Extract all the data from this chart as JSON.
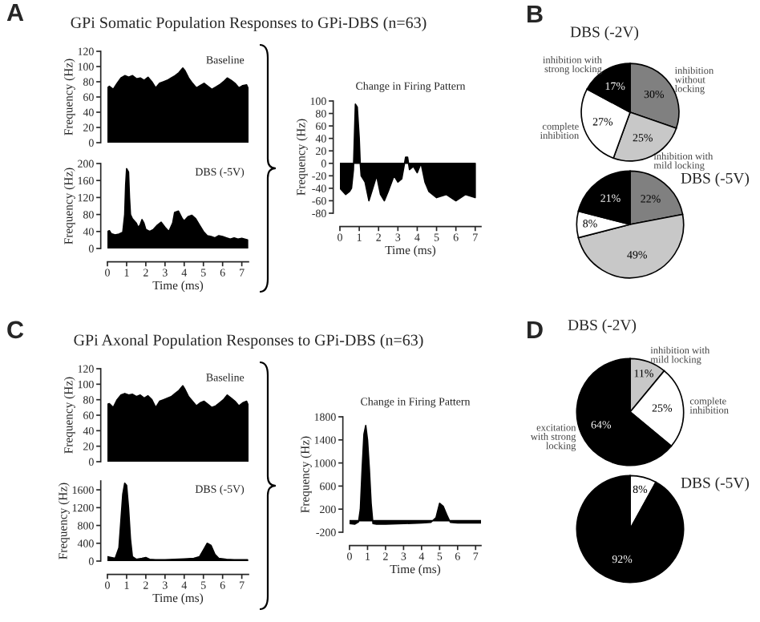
{
  "chart_data": [
    {
      "type": "area",
      "title": "Baseline",
      "ylabel": "Frequency (Hz)",
      "annotations": [
        "A",
        "GPi Somatic Population Responses to GPi-DBS (n=63)"
      ],
      "ylim": [
        0,
        120
      ],
      "yticks": [
        0,
        20,
        40,
        60,
        80,
        100,
        120
      ],
      "tick_labels": "y",
      "x": [
        0,
        0.1,
        0.3,
        0.5,
        0.7,
        0.9,
        1.1,
        1.3,
        1.5,
        1.7,
        1.9,
        2.1,
        2.3,
        2.5,
        2.7,
        2.9,
        3.1,
        3.3,
        3.5,
        3.7,
        3.9,
        4.0,
        4.2,
        4.4,
        4.6,
        4.8,
        5.0,
        5.2,
        5.4,
        5.6,
        5.8,
        6.0,
        6.2,
        6.4,
        6.6,
        6.8,
        7.0,
        7.2,
        7.3
      ],
      "series": [
        {
          "color": "#000000",
          "values": [
            72,
            74,
            70,
            78,
            85,
            88,
            86,
            88,
            84,
            85,
            82,
            86,
            80,
            72,
            78,
            80,
            82,
            85,
            88,
            92,
            98,
            95,
            85,
            78,
            72,
            75,
            78,
            74,
            70,
            73,
            76,
            80,
            85,
            82,
            78,
            72,
            75,
            76,
            70
          ]
        }
      ]
    },
    {
      "type": "area",
      "title": "DBS (-5V)",
      "ylabel": "Frequency (Hz)",
      "xlabel": "Time (ms)",
      "xlim": [
        0,
        7.35
      ],
      "xticks": [
        0,
        1,
        2,
        3,
        4,
        5,
        6,
        7
      ],
      "ylim": [
        0,
        200
      ],
      "yticks": [
        0,
        40,
        80,
        120,
        160,
        200
      ],
      "x": [
        0,
        0.1,
        0.2,
        0.4,
        0.6,
        0.8,
        0.9,
        0.95,
        1.0,
        1.1,
        1.15,
        1.2,
        1.3,
        1.5,
        1.6,
        1.7,
        1.8,
        1.9,
        2.0,
        2.2,
        2.4,
        2.6,
        2.8,
        3.0,
        3.2,
        3.4,
        3.5,
        3.7,
        3.9,
        4.0,
        4.2,
        4.4,
        4.6,
        4.8,
        5.0,
        5.2,
        5.4,
        5.6,
        5.8,
        6.0,
        6.2,
        6.4,
        6.6,
        6.8,
        7.0,
        7.3
      ],
      "series": [
        {
          "color": "#000000",
          "values": [
            40,
            42,
            35,
            32,
            34,
            38,
            80,
            150,
            188,
            180,
            120,
            80,
            70,
            60,
            50,
            55,
            68,
            60,
            45,
            40,
            45,
            55,
            62,
            50,
            40,
            60,
            85,
            88,
            70,
            65,
            75,
            78,
            70,
            55,
            40,
            30,
            28,
            25,
            30,
            28,
            25,
            22,
            25,
            22,
            24,
            20
          ]
        }
      ]
    },
    {
      "type": "area",
      "title": "Change in Firing Pattern",
      "ylabel": "Frequency (Hz)",
      "xlabel": "Time (ms)",
      "xlim": [
        0,
        7.3
      ],
      "xticks": [
        0,
        1,
        2,
        3,
        4,
        5,
        6,
        7
      ],
      "ylim": [
        -80,
        100
      ],
      "yticks": [
        -80,
        -60,
        -40,
        -20,
        0,
        20,
        40,
        60,
        80,
        100
      ],
      "x": [
        0,
        0.3,
        0.5,
        0.6,
        0.7,
        0.8,
        0.9,
        1.0,
        1.05,
        1.1,
        1.3,
        1.5,
        1.7,
        1.9,
        2.1,
        2.3,
        2.5,
        2.8,
        3.0,
        3.2,
        3.4,
        3.5,
        3.6,
        3.8,
        4.0,
        4.2,
        4.4,
        4.6,
        5.0,
        5.5,
        6.0,
        6.5,
        7.0
      ],
      "series": [
        {
          "color": "#000000",
          "values": [
            -40,
            -50,
            -45,
            -40,
            -10,
            95,
            90,
            40,
            0,
            -20,
            -30,
            -60,
            -40,
            -20,
            -50,
            -60,
            -45,
            -20,
            -30,
            -25,
            10,
            10,
            -10,
            -5,
            -15,
            0,
            -30,
            -45,
            -55,
            -50,
            -60,
            -50,
            -55
          ]
        }
      ]
    },
    {
      "type": "pie",
      "title": "DBS (-2V)",
      "annotations": [
        "B"
      ],
      "categories": [
        "inhibition\nwithout\nlocking",
        "inhibition with\nmild locking",
        "complete\ninhibition",
        "inhibition with\nstrong locking"
      ],
      "values": [
        30,
        25,
        27,
        17
      ],
      "colors": [
        "#808080",
        "#c8c8c8",
        "#ffffff",
        "#000000"
      ],
      "value_labels": [
        "30%",
        "25%",
        "27%",
        "17%"
      ]
    },
    {
      "type": "pie",
      "title": "DBS (-5V)",
      "categories": [
        null,
        null,
        null,
        null
      ],
      "values": [
        22,
        49,
        8,
        21
      ],
      "colors": [
        "#808080",
        "#c8c8c8",
        "#ffffff",
        "#000000"
      ],
      "value_labels": [
        "22%",
        "49%",
        "8%",
        "21%"
      ]
    },
    {
      "type": "area",
      "title": "Baseline",
      "ylabel": "Frequency (Hz)",
      "annotations": [
        "C",
        "GPi Axonal Population Responses to GPi-DBS (n=63)"
      ],
      "ylim": [
        0,
        120
      ],
      "yticks": [
        0,
        20,
        40,
        60,
        80,
        100,
        120
      ],
      "tick_labels": "y",
      "x": [
        0,
        0.1,
        0.3,
        0.5,
        0.7,
        0.9,
        1.1,
        1.3,
        1.5,
        1.7,
        1.9,
        2.1,
        2.3,
        2.5,
        2.7,
        2.9,
        3.1,
        3.3,
        3.5,
        3.7,
        3.9,
        4.0,
        4.2,
        4.4,
        4.6,
        4.8,
        5.0,
        5.2,
        5.4,
        5.6,
        5.8,
        6.0,
        6.2,
        6.4,
        6.6,
        6.8,
        7.0,
        7.2,
        7.3
      ],
      "series": [
        {
          "color": "#000000",
          "values": [
            74,
            75,
            70,
            80,
            86,
            88,
            86,
            87,
            84,
            86,
            82,
            85,
            80,
            70,
            78,
            80,
            82,
            84,
            88,
            92,
            98,
            94,
            84,
            78,
            72,
            76,
            78,
            74,
            70,
            72,
            76,
            80,
            86,
            82,
            78,
            72,
            76,
            78,
            72
          ]
        }
      ]
    },
    {
      "type": "area",
      "title": "DBS (-5V)",
      "ylabel": "Frequency (Hz)",
      "xlabel": "Time (ms)",
      "xlim": [
        0,
        7.35
      ],
      "xticks": [
        0,
        1,
        2,
        3,
        4,
        5,
        6,
        7
      ],
      "ylim": [
        0,
        1800
      ],
      "yticks": [
        0,
        400,
        800,
        1200,
        1600
      ],
      "x": [
        0,
        0.2,
        0.4,
        0.6,
        0.7,
        0.8,
        0.9,
        1.0,
        1.1,
        1.2,
        1.3,
        1.5,
        1.8,
        2.0,
        2.2,
        2.5,
        3.0,
        3.5,
        4.0,
        4.5,
        4.8,
        5.0,
        5.2,
        5.4,
        5.6,
        5.8,
        6.2,
        6.6,
        7.0,
        7.3
      ],
      "series": [
        {
          "color": "#000000",
          "values": [
            100,
            80,
            60,
            300,
            900,
            1500,
            1750,
            1700,
            1200,
            500,
            100,
            40,
            60,
            80,
            40,
            30,
            30,
            40,
            50,
            60,
            100,
            250,
            400,
            350,
            150,
            60,
            40,
            30,
            30,
            30
          ]
        }
      ]
    },
    {
      "type": "area",
      "title": "Change in Firing Pattern",
      "ylabel": "Frequency (Hz)",
      "xlabel": "Time (ms)",
      "xlim": [
        0,
        7.3
      ],
      "xticks": [
        0,
        1,
        2,
        3,
        4,
        5,
        6,
        7
      ],
      "ylim": [
        -200,
        1800
      ],
      "yticks": [
        -200,
        200,
        600,
        1000,
        1400,
        1800
      ],
      "x": [
        0,
        0.3,
        0.5,
        0.6,
        0.7,
        0.8,
        0.9,
        1.0,
        1.1,
        1.2,
        1.3,
        1.5,
        2.0,
        3.0,
        4.0,
        4.5,
        4.8,
        5.0,
        5.2,
        5.4,
        5.6,
        6.0,
        7.0,
        7.3
      ],
      "series": [
        {
          "color": "#000000",
          "values": [
            -50,
            -60,
            -20,
            200,
            900,
            1500,
            1650,
            1400,
            900,
            300,
            -50,
            -60,
            -60,
            -50,
            -40,
            -30,
            50,
            300,
            250,
            100,
            -30,
            -40,
            -40,
            -40
          ]
        }
      ]
    },
    {
      "type": "pie",
      "title": "DBS (-2V)",
      "annotations": [
        "D"
      ],
      "categories": [
        "inhibition with\nmild locking",
        "complete\ninhibition",
        "excitation\nwith strong\nlocking"
      ],
      "values": [
        11,
        25,
        64
      ],
      "colors": [
        "#c8c8c8",
        "#ffffff",
        "#000000"
      ],
      "value_labels": [
        "11%",
        "25%",
        "64%"
      ]
    },
    {
      "type": "pie",
      "title": "DBS (-5V)",
      "categories": [
        null,
        null
      ],
      "values": [
        8,
        92
      ],
      "colors": [
        "#ffffff",
        "#000000"
      ],
      "value_labels": [
        "8%",
        "92%"
      ]
    }
  ]
}
